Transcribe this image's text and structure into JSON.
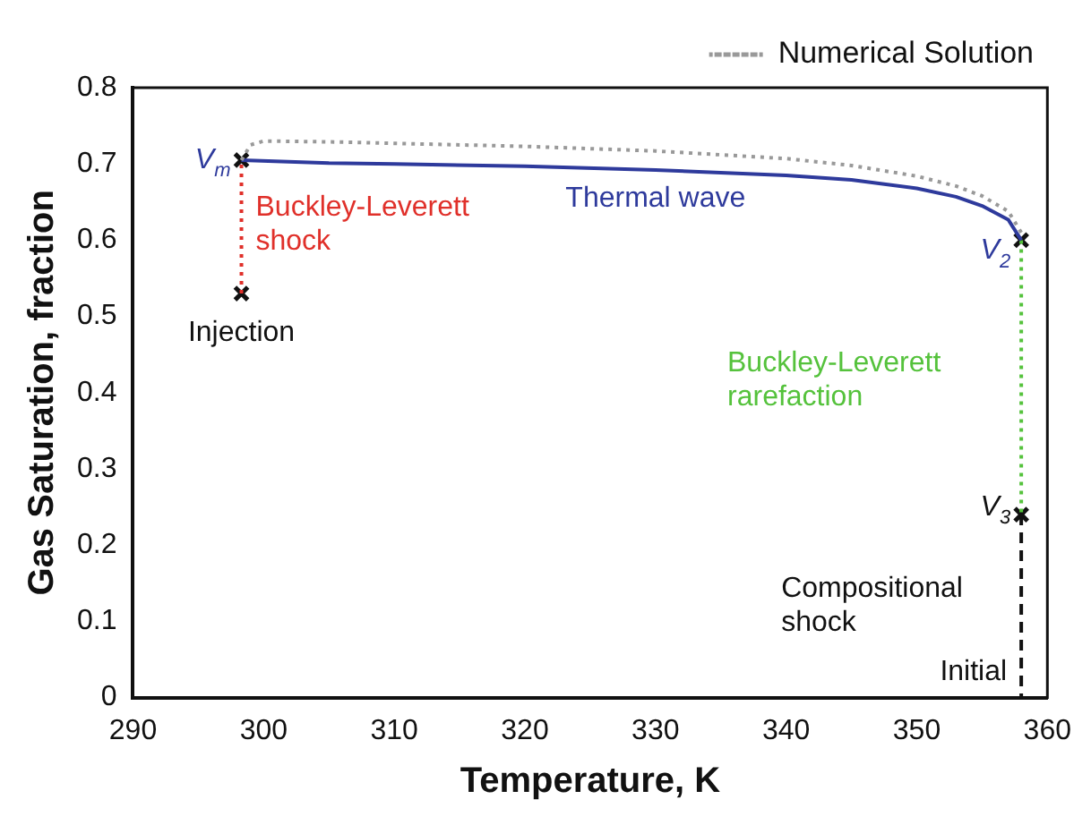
{
  "chart_data": {
    "type": "line",
    "xlabel": "Temperature, K",
    "ylabel": "Gas Saturation, fraction",
    "xlim": [
      290,
      360
    ],
    "xticks": [
      290,
      300,
      310,
      320,
      330,
      340,
      350,
      360
    ],
    "ylim": [
      0,
      0.8
    ],
    "yticks": [
      0,
      0.1,
      0.2,
      0.3,
      0.4,
      0.5,
      0.6,
      0.7,
      0.8
    ],
    "grid": false,
    "legend": "top right",
    "series": [
      {
        "name": "Numerical Solution",
        "color": "#999999",
        "line_style": "dotted",
        "marker": "none",
        "x": [
          298.3,
          299,
          300,
          305,
          310,
          320,
          330,
          340,
          345,
          350,
          353,
          355,
          357,
          358
        ],
        "values": [
          0.705,
          0.725,
          0.73,
          0.729,
          0.727,
          0.723,
          0.717,
          0.707,
          0.698,
          0.684,
          0.671,
          0.658,
          0.638,
          0.61
        ]
      },
      {
        "color": "#2e3a9c",
        "line_style": "solid",
        "marker": "none",
        "x": [
          298.3,
          305,
          310,
          320,
          330,
          340,
          345,
          350,
          353,
          355,
          357,
          358
        ],
        "values": [
          0.705,
          0.701,
          0.7,
          0.697,
          0.692,
          0.685,
          0.679,
          0.668,
          0.657,
          0.645,
          0.627,
          0.6
        ]
      },
      {
        "color": "#e0302a",
        "line_style": "dotted",
        "marker": "none",
        "x": [
          298.3,
          298.3
        ],
        "values": [
          0.53,
          0.705
        ]
      },
      {
        "color": "#55c23c",
        "line_style": "dotted",
        "marker": "none",
        "x": [
          358,
          358
        ],
        "values": [
          0.6,
          0.24
        ]
      },
      {
        "color": "#111111",
        "line_style": "dashed",
        "marker": "none",
        "x": [
          358,
          358
        ],
        "values": [
          0.24,
          0
        ]
      },
      {
        "type": "scatter",
        "color": "#111111",
        "marker": "cross",
        "x": [
          298.3,
          298.3,
          358,
          358
        ],
        "values": [
          0.53,
          0.705,
          0.6,
          0.24
        ]
      }
    ],
    "annotations": [
      {
        "text": "V$_{m}$",
        "x": 298.3,
        "y": 0.705
      },
      {
        "text": "Buckley-Leverett shock",
        "x": 298.3,
        "y": 0.62
      },
      {
        "text": "Injection",
        "x": 298.3,
        "y": 0.53
      },
      {
        "text": "Thermal wave",
        "x": 330,
        "y": 0.692
      },
      {
        "text": "V$_{2}$",
        "x": 358,
        "y": 0.6
      },
      "Buckley-Leverett rarefaction",
      {
        "text": "V$_{3}$",
        "x": 358,
        "y": 0.24
      },
      {
        "text": "Compositional shock",
        "x": 358,
        "y": 0.12
      },
      {
        "text": "Initial",
        "x": 358,
        "y": 0
      }
    ]
  }
}
